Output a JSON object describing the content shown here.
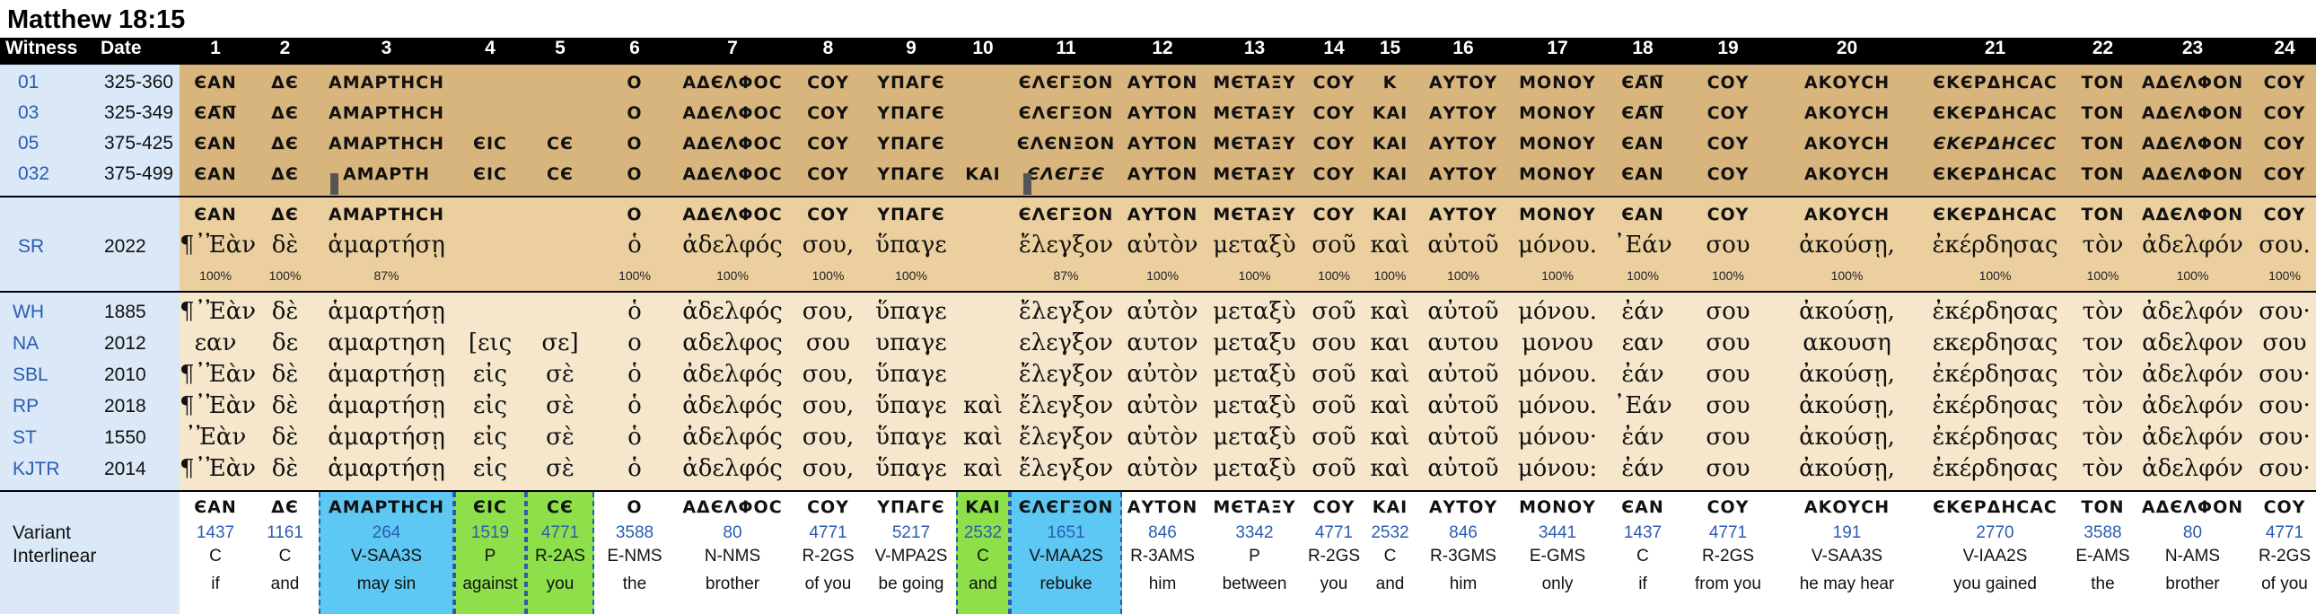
{
  "title": "Matthew 18:15",
  "headers": {
    "witness": "Witness",
    "date": "Date",
    "numbers": [
      "1",
      "2",
      "3",
      "4",
      "5",
      "6",
      "7",
      "8",
      "9",
      "10",
      "11",
      "12",
      "13",
      "14",
      "15",
      "16",
      "17",
      "18",
      "19",
      "20",
      "21",
      "22",
      "23",
      "24"
    ]
  },
  "manuscripts": [
    {
      "id": "01",
      "date": "325-360",
      "words": [
        "ЄΑΝ",
        "ΔЄ",
        "ΑΜΑΡΤΗϹΗ",
        "",
        "",
        "Ο",
        "ΑΔЄΛΦΟϹ",
        "ϹΟΥ",
        "ΥΠΑΓЄ",
        "",
        "ЄΛЄΓΞΟΝ",
        "ΑΥΤΟΝ",
        "ΜЄΤΑΞΥ",
        "ϹΟΥ",
        "Κ",
        "ΑΥΤΟΥ",
        "ΜΟΝΟΥ",
        "ЄΑ̅Ν̅",
        "ϹΟΥ",
        "ΑΚΟΥϹΗ",
        "ЄΚЄΡΔΗϹΑϹ",
        "ΤΟΝ",
        "ΑΔЄΛΦΟΝ",
        "ϹΟΥ"
      ]
    },
    {
      "id": "03",
      "date": "325-349",
      "words": [
        "ЄΑ̅Ν̅",
        "ΔЄ",
        "ΑΜΑΡΤΗϹΗ",
        "",
        "",
        "Ο",
        "ΑΔЄΛΦΟϹ",
        "ϹΟΥ",
        "ΥΠΑΓЄ",
        "",
        "ЄΛЄΓΞΟΝ",
        "ΑΥΤΟΝ",
        "ΜЄΤΑΞΥ",
        "ϹΟΥ",
        "ΚΑΙ",
        "ΑΥΤΟΥ",
        "ΜΟΝΟΥ",
        "ЄΑ̅Ν̅",
        "ϹΟΥ",
        "ΑΚΟΥϹΗ",
        "ЄΚЄΡΔΗϹΑϹ",
        "ΤΟΝ",
        "ΑΔЄΛΦΟΝ",
        "ϹΟΥ"
      ]
    },
    {
      "id": "05",
      "date": "375-425",
      "words": [
        "ЄΑΝ",
        "ΔЄ",
        "ΑΜΑΡΤΗϹΗ",
        "ЄΙϹ",
        "ϹЄ",
        "Ο",
        "ΑΔЄΛΦΟϹ",
        "ϹΟΥ",
        "ΥΠΑΓЄ",
        "",
        "ЄΛЄΝΞΟΝ",
        "ΑΥΤΟΝ",
        "ΜЄΤΑΞΥ",
        "ϹΟΥ",
        "ΚΑΙ",
        "ΑΥΤΟΥ",
        "ΜΟΝΟΥ",
        "ЄΑΝ",
        "ϹΟΥ",
        "ΑΚΟΥϹΗ",
        "ЄΚЄΡΔΗϹЄϹ",
        "ΤΟΝ",
        "ΑΔЄΛΦΟΝ",
        "ϹΟΥ"
      ]
    },
    {
      "id": "032",
      "date": "375-499",
      "words": [
        "ЄΑΝ",
        "ΔЄ",
        "ΑΜΑΡΤΗ",
        "ЄΙϹ",
        "ϹЄ",
        "Ο",
        "ΑΔЄΛΦΟϹ",
        "ϹΟΥ",
        "ΥΠΑΓЄ",
        "ΚΑΙ",
        "ЄΛЄΓΞЄ",
        "ΑΥΤΟΝ",
        "ΜЄΤΑΞΥ",
        "ϹΟΥ",
        "ΚΑΙ",
        "ΑΥΤΟΥ",
        "ΜΟΝΟΥ",
        "ЄΑΝ",
        "ϹΟΥ",
        "ΑΚΟΥϹΗ",
        "ЄΚЄΡΔΗϹΑϹ",
        "ΤΟΝ",
        "ΑΔЄΛΦΟΝ",
        "ϹΟΥ"
      ]
    }
  ],
  "sr": {
    "id": "SR",
    "date": "2022",
    "uncial": [
      "ЄΑΝ",
      "ΔЄ",
      "ΑΜΑΡΤΗϹΗ",
      "",
      "",
      "Ο",
      "ΑΔЄΛΦΟϹ",
      "ϹΟΥ",
      "ΥΠΑΓЄ",
      "",
      "ЄΛЄΓΞΟΝ",
      "ΑΥΤΟΝ",
      "ΜЄΤΑΞΥ",
      "ϹΟΥ",
      "ΚΑΙ",
      "ΑΥΤΟΥ",
      "ΜΟΝΟΥ",
      "ЄΑΝ",
      "ϹΟΥ",
      "ΑΚΟΥϹΗ",
      "ЄΚЄΡΔΗϹΑϹ",
      "ΤΟΝ",
      "ΑΔЄΛΦΟΝ",
      "ϹΟΥ"
    ],
    "greek": [
      "¶᾿Ἐὰν",
      "δὲ",
      "ἁμαρτήσῃ",
      "",
      "",
      "ὁ",
      "ἀδελφός",
      "σου,",
      "ὕπαγε",
      "",
      "ἔλεγξον",
      "αὐτὸν",
      "μεταξὺ",
      "σοῦ",
      "καὶ",
      "αὐτοῦ",
      "μόνου.",
      "᾿Εάν",
      "σου",
      "ἀκούσῃ,",
      "ἐκέρδησας",
      "τὸν",
      "ἀδελφόν",
      "σου."
    ],
    "percent": [
      "100%",
      "100%",
      "87%",
      "",
      "",
      "100%",
      "100%",
      "100%",
      "100%",
      "",
      "87%",
      "100%",
      "100%",
      "100%",
      "100%",
      "100%",
      "100%",
      "100%",
      "100%",
      "100%",
      "100%",
      "100%",
      "100%",
      "100%"
    ]
  },
  "editions": [
    {
      "id": "WH",
      "date": "1885",
      "words": [
        "¶᾿Ἐὰν",
        "δὲ",
        "ἁμαρτήσῃ",
        "",
        "",
        "ὁ",
        "ἀδελφός",
        "σου,",
        "ὕπαγε",
        "",
        "ἔλεγξον",
        "αὐτὸν",
        "μεταξὺ",
        "σοῦ",
        "καὶ",
        "αὐτοῦ",
        "μόνου.",
        "ἐάν",
        "σου",
        "ἀκούσῃ,",
        "ἐκέρδησας",
        "τὸν",
        "ἀδελφόν",
        "σου·"
      ]
    },
    {
      "id": "NA",
      "date": "2012",
      "words": [
        "εαν",
        "δε",
        "αμαρτηση",
        "[εις",
        "σε]",
        "ο",
        "αδελφος",
        "σου",
        "υπαγε",
        "",
        "ελεγξον",
        "αυτον",
        "μεταξυ",
        "σου",
        "και",
        "αυτου",
        "μονου",
        "εαν",
        "σου",
        "ακουση",
        "εκερδησας",
        "τον",
        "αδελφον",
        "σου"
      ]
    },
    {
      "id": "SBL",
      "date": "2010",
      "words": [
        "¶᾿Ἐὰν",
        "δὲ",
        "ἁμαρτήσῃ",
        "εἰς",
        "σὲ",
        "ὁ",
        "ἀδελφός",
        "σου,",
        "ὕπαγε",
        "",
        "ἔλεγξον",
        "αὐτὸν",
        "μεταξὺ",
        "σοῦ",
        "καὶ",
        "αὐτοῦ",
        "μόνου.",
        "ἐάν",
        "σου",
        "ἀκούσῃ,",
        "ἐκέρδησας",
        "τὸν",
        "ἀδελφόν",
        "σου·"
      ]
    },
    {
      "id": "RP",
      "date": "2018",
      "words": [
        "¶᾿Ἐὰν",
        "δὲ",
        "ἁμαρτήσῃ",
        "εἰς",
        "σὲ",
        "ὁ",
        "ἀδελφός",
        "σου,",
        "ὕπαγε",
        "καὶ",
        "ἔλεγξον",
        "αὐτὸν",
        "μεταξὺ",
        "σοῦ",
        "καὶ",
        "αὐτοῦ",
        "μόνου.",
        "᾿Εάν",
        "σου",
        "ἀκούσῃ,",
        "ἐκέρδησας",
        "τὸν",
        "ἀδελφόν",
        "σου·"
      ]
    },
    {
      "id": "ST",
      "date": "1550",
      "words": [
        "᾿Ἐὰν",
        "δὲ",
        "ἁμαρτήσῃ",
        "εἰς",
        "σὲ",
        "ὁ",
        "ἀδελφός",
        "σου,",
        "ὕπαγε",
        "καὶ",
        "ἔλεγξον",
        "αὐτὸν",
        "μεταξὺ",
        "σοῦ",
        "καὶ",
        "αὐτοῦ",
        "μόνου·",
        "ἐάν",
        "σου",
        "ἀκούσῃ,",
        "ἐκέρδησας",
        "τὸν",
        "ἀδελφόν",
        "σου·"
      ]
    },
    {
      "id": "KJTR",
      "date": "2014",
      "words": [
        "¶᾿Ἐὰν",
        "δὲ",
        "ἁμαρτήσῃ",
        "εἰς",
        "σὲ",
        "ὁ",
        "ἀδελφός",
        "σου,",
        "ὕπαγε",
        "καὶ",
        "ἔλεγξον",
        "αὐτὸν",
        "μεταξὺ",
        "σοῦ",
        "καὶ",
        "αὐτοῦ",
        "μόνου:",
        "ἐάν",
        "σου",
        "ἀκούσῃ,",
        "ἐκέρδησας",
        "τὸν",
        "ἀδελφόν",
        "σου·"
      ]
    }
  ],
  "interlinear": {
    "labels": [
      "Variant",
      "Interlinear"
    ],
    "uncial": [
      "ЄΑΝ",
      "ΔЄ",
      "ΑΜΑΡΤΗϹΗ",
      "ЄΙϹ",
      "ϹЄ",
      "Ο",
      "ΑΔЄΛΦΟϹ",
      "ϹΟΥ",
      "ΥΠΑΓЄ",
      "ΚΑΙ",
      "ЄΛЄΓΞΟΝ",
      "ΑΥΤΟΝ",
      "ΜЄΤΑΞΥ",
      "ϹΟΥ",
      "ΚΑΙ",
      "ΑΥΤΟΥ",
      "ΜΟΝΟΥ",
      "ЄΑΝ",
      "ϹΟΥ",
      "ΑΚΟΥϹΗ",
      "ЄΚЄΡΔΗϹΑϹ",
      "ΤΟΝ",
      "ΑΔЄΛΦΟΝ",
      "ϹΟΥ"
    ],
    "strongs": [
      "1437",
      "1161",
      "264",
      "1519",
      "4771",
      "3588",
      "80",
      "4771",
      "5217",
      "2532",
      "1651",
      "846",
      "3342",
      "4771",
      "2532",
      "846",
      "3441",
      "1437",
      "4771",
      "191",
      "2770",
      "3588",
      "80",
      "4771"
    ],
    "morph": [
      "C",
      "C",
      "V-SAA3S",
      "P",
      "R-2AS",
      "E-NMS",
      "N-NMS",
      "R-2GS",
      "V-MPA2S",
      "C",
      "V-MAA2S",
      "R-3AMS",
      "P",
      "R-2GS",
      "C",
      "R-3GMS",
      "E-GMS",
      "C",
      "R-2GS",
      "V-SAA3S",
      "V-IAA2S",
      "E-AMS",
      "N-AMS",
      "R-2GS"
    ],
    "english": [
      "if",
      "and",
      "may sin",
      "against",
      "you",
      "the",
      "brother",
      "of you",
      "be going",
      "and",
      "rebuke",
      "him",
      "between",
      "you",
      "and",
      "him",
      "only",
      "if",
      "from you",
      "he may hear",
      "you gained",
      "the",
      "brother",
      "of you"
    ],
    "highlight": [
      "",
      "",
      "blue",
      "green",
      "green",
      "",
      "",
      "",
      "",
      "green",
      "blue",
      "",
      "",
      "",
      "",
      "",
      "",
      "",
      "",
      "",
      "",
      "",
      "",
      ""
    ]
  },
  "colors": {
    "header": "#000000",
    "ms_bg": "#d9b57e",
    "sr_bg": "#ebcf9f",
    "ed_bg": "#f6e6cc",
    "left_bg": "#dbe8f8",
    "blue": "#5ec8f4",
    "green": "#8ee04a",
    "link": "#2a5db0"
  }
}
